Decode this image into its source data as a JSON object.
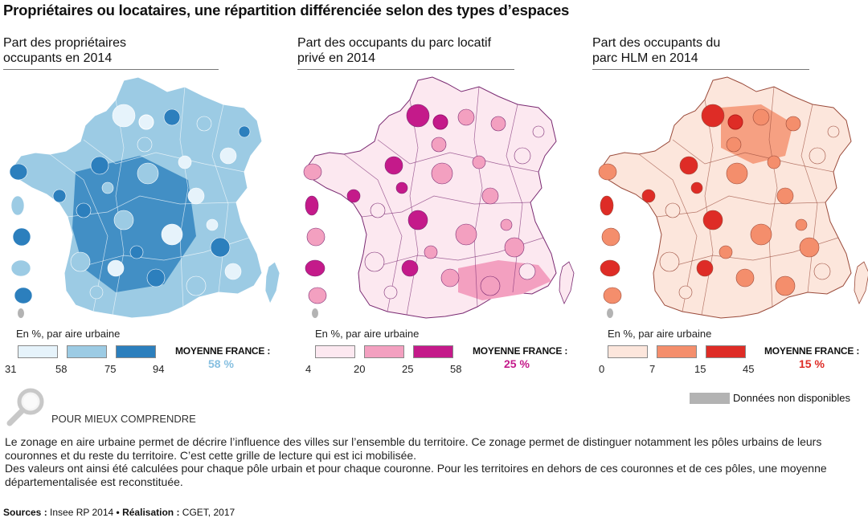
{
  "title": "Propriétaires ou locataires, une répartition différenciée selon des types d’espaces",
  "panels": [
    {
      "title_line1": "Part des propriétaires",
      "title_line2": "occupants en 2014",
      "legend_caption": "En %, par aire urbaine",
      "ticks": [
        "31",
        "58",
        "75",
        "94"
      ],
      "avg_label": "MOYENNE FRANCE :",
      "avg_value": "58 %",
      "colors": {
        "c1": "#e6f3fb",
        "c2": "#9ccbe4",
        "c3": "#2c7fbd",
        "dark": "#1c68a8",
        "border": "#ffffff",
        "avg": "#86bfe0"
      }
    },
    {
      "title_line1": "Part des occupants du parc locatif",
      "title_line2": "privé en 2014",
      "legend_caption": "En %, par aire urbaine",
      "ticks": [
        "4",
        "20",
        "25",
        "58"
      ],
      "avg_label": "MOYENNE FRANCE :",
      "avg_value": "25 %",
      "colors": {
        "c1": "#fce8f0",
        "c2": "#f3a0c0",
        "c3": "#c41a8a",
        "dark": "#9a1270",
        "border": "#7a2a72",
        "avg": "#c41a8a"
      }
    },
    {
      "title_line1": "Part des occupants du",
      "title_line2": "parc HLM en 2014",
      "legend_caption": "En %, par aire urbaine",
      "ticks": [
        "0",
        "7",
        "15",
        "45"
      ],
      "avg_label": "MOYENNE FRANCE :",
      "avg_value": "15 %",
      "colors": {
        "c1": "#fce6dc",
        "c2": "#f48e6c",
        "c3": "#de2c26",
        "dark": "#b51d1a",
        "border": "#9a4a3a",
        "avg": "#de2c26"
      }
    }
  ],
  "nodata_label": "Données non disponibles",
  "nodata_color": "#b3b3b3",
  "understand_label": "POUR MIEUX COMPRENDRE",
  "explain": [
    "Le zonage en aire urbaine permet de décrire l’influence des villes sur l’ensemble du territoire. Ce zonage permet de distinguer notamment les pôles urbains de leurs couronnes et du reste du territoire. C’est cette grille de lecture qui est ici mobilisée.",
    "Des valeurs ont ainsi été calculées pour chaque pôle urbain et pour chaque couronne. Pour les territoires en dehors de ces couronnes et de ces pôles, une moyenne départementalisée est reconstituée."
  ],
  "sources_label": "Sources :",
  "sources_value": "Insee RP 2014",
  "bullet": "•",
  "realisation_label": "Réalisation :",
  "realisation_value": "CGET, 2017"
}
